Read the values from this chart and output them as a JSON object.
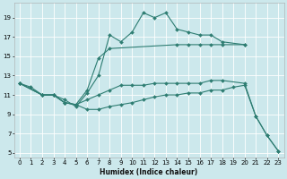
{
  "xlabel": "Humidex (Indice chaleur)",
  "background_color": "#cce8ec",
  "line_color": "#2e7d72",
  "grid_color": "#ffffff",
  "xlim": [
    -0.5,
    23.5
  ],
  "ylim": [
    4.5,
    20.5
  ],
  "yticks": [
    5,
    7,
    9,
    11,
    13,
    15,
    17,
    19
  ],
  "xticks": [
    0,
    1,
    2,
    3,
    4,
    5,
    6,
    7,
    8,
    9,
    10,
    11,
    12,
    13,
    14,
    15,
    16,
    17,
    18,
    19,
    20,
    21,
    22,
    23
  ],
  "lines": [
    {
      "x": [
        0,
        1,
        2,
        3,
        4,
        5,
        6,
        7,
        8,
        9,
        10,
        11,
        12,
        13,
        14,
        15,
        16,
        17,
        18,
        20
      ],
      "y": [
        12.2,
        11.8,
        11.0,
        11.0,
        10.5,
        9.8,
        11.2,
        13.0,
        17.2,
        16.5,
        17.5,
        19.5,
        19.0,
        19.5,
        17.8,
        17.5,
        17.2,
        17.2,
        16.5,
        16.2
      ]
    },
    {
      "x": [
        0,
        2,
        3,
        4,
        5,
        6,
        7,
        8,
        14,
        15,
        16,
        17,
        18,
        20
      ],
      "y": [
        12.2,
        11.0,
        11.0,
        10.2,
        10.0,
        11.5,
        14.8,
        15.8,
        16.2,
        16.2,
        16.2,
        16.2,
        16.2,
        16.2
      ]
    },
    {
      "x": [
        0,
        2,
        3,
        4,
        5,
        6,
        7,
        8,
        9,
        10,
        11,
        12,
        13,
        14,
        15,
        16,
        17,
        18,
        20,
        21,
        22,
        23
      ],
      "y": [
        12.2,
        11.0,
        11.0,
        10.2,
        10.0,
        10.5,
        11.0,
        11.5,
        12.0,
        12.0,
        12.0,
        12.2,
        12.2,
        12.2,
        12.2,
        12.2,
        12.5,
        12.5,
        12.2,
        8.8,
        6.8,
        5.2
      ]
    },
    {
      "x": [
        0,
        2,
        3,
        4,
        5,
        6,
        7,
        8,
        9,
        10,
        11,
        12,
        13,
        14,
        15,
        16,
        17,
        18,
        19,
        20,
        21,
        22,
        23
      ],
      "y": [
        12.2,
        11.0,
        11.0,
        10.2,
        10.0,
        9.5,
        9.5,
        9.8,
        10.0,
        10.2,
        10.5,
        10.8,
        11.0,
        11.0,
        11.2,
        11.2,
        11.5,
        11.5,
        11.8,
        12.0,
        8.8,
        6.8,
        5.2
      ]
    }
  ]
}
